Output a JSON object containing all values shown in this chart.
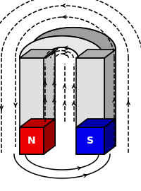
{
  "bg_color": "#ffffff",
  "gray_face": "#c8c8c8",
  "gray_side": "#a0a0a0",
  "gray_top": "#b0b0b0",
  "north_color": "#ee0000",
  "south_color": "#0000ee",
  "north_label": "N",
  "south_label": "S",
  "arrow_color": "#000000",
  "figsize": [
    2.0,
    2.7
  ],
  "dpi": 100
}
